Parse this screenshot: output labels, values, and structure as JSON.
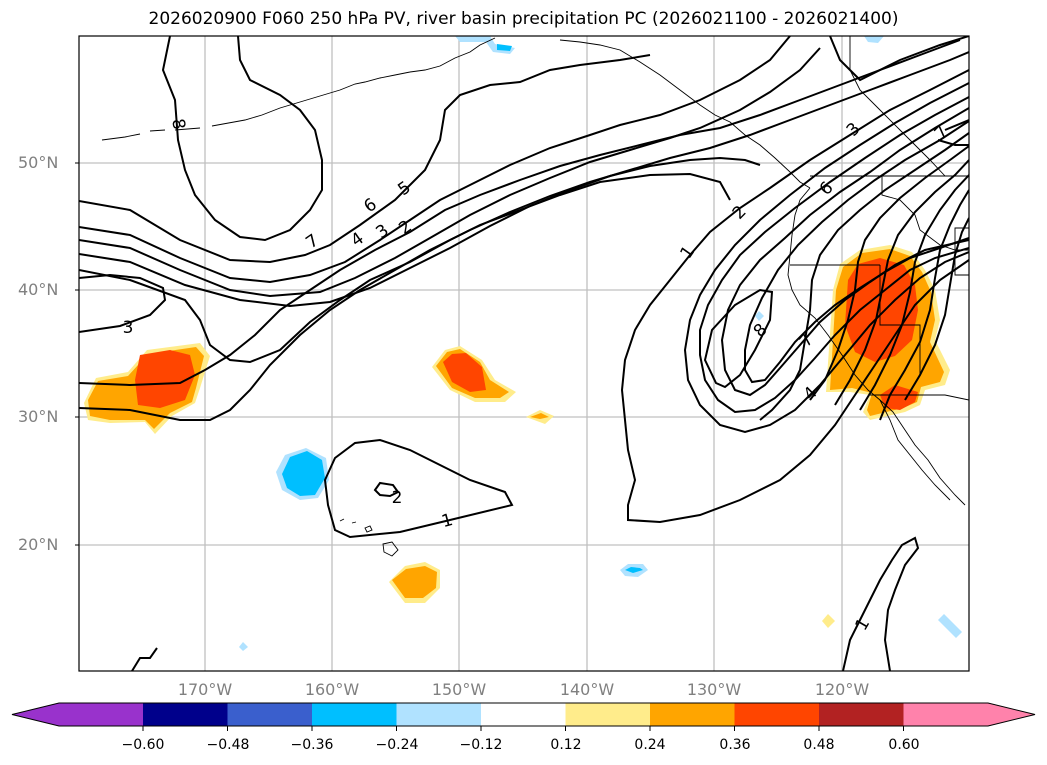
{
  "title": "2026020900 F060 250 hPa PV, river basin precipitation PC (2026021100 - 2026021400)",
  "map": {
    "lat_labels": [
      "50°N",
      "40°N",
      "30°N",
      "20°N"
    ],
    "lon_labels": [
      "170°W",
      "160°W",
      "150°W",
      "140°W",
      "130°W",
      "120°W"
    ],
    "lat_values": [
      50,
      40,
      30,
      20
    ],
    "lon_values": [
      -170,
      -160,
      -150,
      -140,
      -130,
      -120
    ],
    "lat_range": [
      10,
      60
    ],
    "lon_range": [
      -180,
      -110
    ],
    "contour_labels": [
      "8",
      "7",
      "6",
      "5",
      "4",
      "3",
      "2",
      "3",
      "2",
      "1",
      "1",
      "2",
      "3",
      "6",
      "7",
      "8",
      "7",
      "4",
      "1"
    ],
    "grid_color": "#c0c0c0",
    "contour_color": "#000000"
  },
  "colorbar": {
    "colors": [
      "#9932cc",
      "#00008b",
      "#3a5fcd",
      "#00bfff",
      "#b0e2ff",
      "#ffffff",
      "#ffec8b",
      "#ffa500",
      "#ff4500",
      "#b22222",
      "#ff82ab"
    ],
    "ticks": [
      "−0.60",
      "−0.48",
      "−0.36",
      "−0.24",
      "−0.12",
      "0.12",
      "0.24",
      "0.36",
      "0.48",
      "0.60"
    ],
    "extend": "both"
  }
}
